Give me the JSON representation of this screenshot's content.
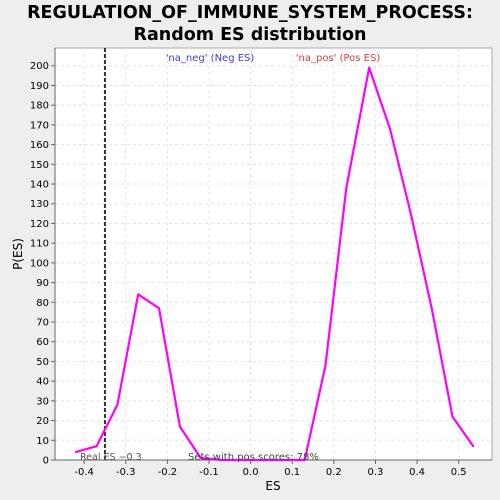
{
  "chart_data": {
    "type": "line",
    "title_lines": [
      "REGULATION_OF_IMMUNE_SYSTEM_PROCESS:",
      "Random ES distribution"
    ],
    "xlabel": "ES",
    "ylabel": "P(ES)",
    "xlim": [
      -0.47,
      0.58
    ],
    "ylim": [
      0,
      209
    ],
    "xticks": [
      -0.4,
      -0.3,
      -0.2,
      -0.1,
      0.0,
      0.1,
      0.2,
      0.3,
      0.4,
      0.5
    ],
    "xtick_labels": [
      "-0.4",
      "-0.3",
      "-0.2",
      "-0.1",
      "0.0",
      "0.1",
      "0.2",
      "0.3",
      "0.4",
      "0.5"
    ],
    "yticks": [
      0,
      10,
      20,
      30,
      40,
      50,
      60,
      70,
      80,
      90,
      100,
      110,
      120,
      130,
      140,
      150,
      160,
      170,
      180,
      190,
      200
    ],
    "ytick_labels": [
      "0",
      "10",
      "20",
      "30",
      "40",
      "50",
      "60",
      "70",
      "80",
      "90",
      "100",
      "110",
      "120",
      "130",
      "140",
      "150",
      "160",
      "170",
      "180",
      "190",
      "200"
    ],
    "grid": true,
    "series": [
      {
        "name": "distribution",
        "color": "#ff00ff",
        "x": [
          -0.42,
          -0.37,
          -0.32,
          -0.27,
          -0.22,
          -0.17,
          -0.12,
          -0.07,
          -0.02,
          0.03,
          0.08,
          0.13,
          0.18,
          0.23,
          0.285,
          0.335,
          0.385,
          0.435,
          0.485,
          0.535
        ],
        "y": [
          4,
          7,
          28,
          84,
          77,
          17,
          1,
          0,
          0,
          0,
          0,
          0,
          48,
          138,
          199,
          168,
          125,
          77,
          22,
          7
        ]
      }
    ],
    "real_es": -0.35,
    "real_es_label": "Real ES −0.3",
    "sets_label": "Sets with pos scores: 78%",
    "legend": [
      {
        "label": "'na_neg' (Neg ES)",
        "color": "#3c3cdc"
      },
      {
        "label": "'na_pos' (Pos ES)",
        "color": "#dc3c3c"
      }
    ]
  }
}
